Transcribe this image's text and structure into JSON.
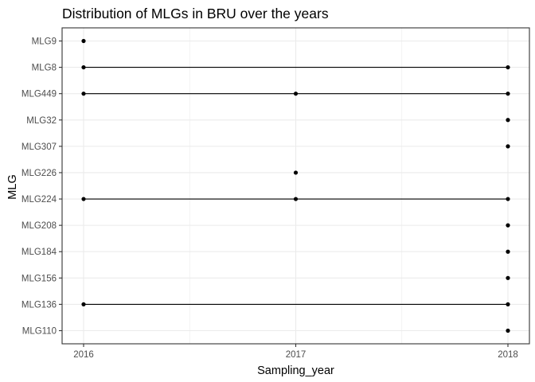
{
  "chart_data": {
    "type": "scatter",
    "title": "Distribution of MLGs in BRU over the years",
    "xlabel": "Sampling_year",
    "ylabel": "MLG",
    "x_ticks": [
      "2016",
      "2017",
      "2018"
    ],
    "xlim": [
      2016,
      2018
    ],
    "y_categories": [
      "MLG9",
      "MLG8",
      "MLG449",
      "MLG32",
      "MLG307",
      "MLG226",
      "MLG224",
      "MLG208",
      "MLG184",
      "MLG156",
      "MLG136",
      "MLG110"
    ],
    "series": [
      {
        "mlg": "MLG9",
        "years": [
          2016
        ]
      },
      {
        "mlg": "MLG8",
        "years": [
          2016,
          2018
        ]
      },
      {
        "mlg": "MLG449",
        "years": [
          2016,
          2017,
          2018
        ]
      },
      {
        "mlg": "MLG32",
        "years": [
          2018
        ]
      },
      {
        "mlg": "MLG307",
        "years": [
          2018
        ]
      },
      {
        "mlg": "MLG226",
        "years": [
          2017
        ]
      },
      {
        "mlg": "MLG224",
        "years": [
          2016,
          2017,
          2018
        ]
      },
      {
        "mlg": "MLG208",
        "years": [
          2018
        ]
      },
      {
        "mlg": "MLG184",
        "years": [
          2018
        ]
      },
      {
        "mlg": "MLG156",
        "years": [
          2018
        ]
      },
      {
        "mlg": "MLG136",
        "years": [
          2016,
          2018
        ]
      },
      {
        "mlg": "MLG110",
        "years": [
          2018
        ]
      }
    ],
    "grid": true,
    "point_color": "#000000",
    "line_color": "#000000",
    "grid_color": "#ebebeb",
    "panel_border_color": "#333333"
  }
}
